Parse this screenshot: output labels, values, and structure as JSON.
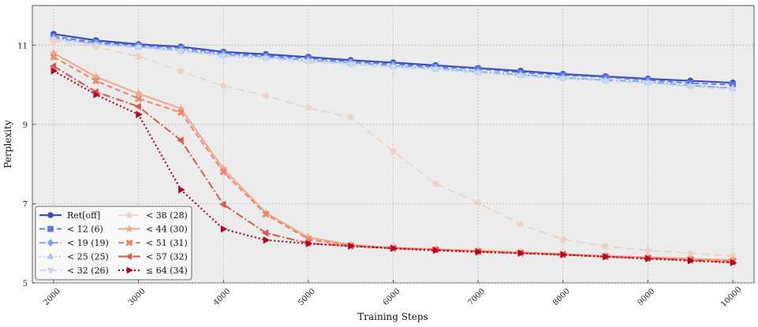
{
  "chart_data": {
    "type": "line",
    "xlabel": "Training Steps",
    "ylabel": "Perplexity",
    "xlim": [
      1750,
      10250
    ],
    "ylim": [
      5,
      12
    ],
    "x_ticks": [
      2000,
      3000,
      4000,
      5000,
      6000,
      7000,
      8000,
      9000,
      10000
    ],
    "y_ticks": [
      5,
      7,
      9,
      11
    ],
    "grid": true,
    "legend_position": "lower-left",
    "x": [
      2000,
      2500,
      3000,
      3500,
      4000,
      4500,
      5000,
      5500,
      6000,
      6500,
      7000,
      7500,
      8000,
      8500,
      9000,
      9500,
      10000
    ],
    "series": [
      {
        "name": "Ret[off]",
        "color": "#3b4cc0",
        "dash": "",
        "marker": "circle",
        "width": 2.2,
        "values": [
          11.28,
          11.12,
          11.02,
          10.96,
          10.83,
          10.77,
          10.7,
          10.62,
          10.56,
          10.49,
          10.42,
          10.35,
          10.27,
          10.21,
          10.15,
          10.1,
          10.05
        ]
      },
      {
        "name": "< 12 (6)",
        "color": "#5a78e4",
        "dash": "7,4",
        "marker": "square",
        "width": 1.8,
        "values": [
          11.22,
          11.07,
          10.99,
          10.93,
          10.8,
          10.73,
          10.67,
          10.58,
          10.52,
          10.45,
          10.4,
          10.31,
          10.24,
          10.19,
          10.12,
          10.04,
          10.0
        ]
      },
      {
        "name": "< 19 (19)",
        "color": "#7b9ff9",
        "dash": "8,3,2,3",
        "marker": "diamond",
        "width": 1.8,
        "values": [
          11.18,
          11.04,
          10.96,
          10.88,
          10.76,
          10.7,
          10.62,
          10.56,
          10.48,
          10.42,
          10.33,
          10.26,
          10.18,
          10.12,
          10.08,
          9.98,
          9.92
        ]
      },
      {
        "name": "< 25 (25)",
        "color": "#aac7fd",
        "dash": "2,3",
        "marker": "triangle-up",
        "width": 1.8,
        "values": [
          11.16,
          11.02,
          10.95,
          10.85,
          10.74,
          10.68,
          10.6,
          10.53,
          10.46,
          10.4,
          10.32,
          10.24,
          10.17,
          10.11,
          10.05,
          9.97,
          9.91
        ]
      },
      {
        "name": "< 32 (26)",
        "color": "#cdd9ec",
        "dash": "9,4",
        "marker": "triangle-down",
        "width": 1.8,
        "values": [
          11.14,
          11.0,
          10.94,
          10.84,
          10.72,
          10.66,
          10.58,
          10.51,
          10.44,
          10.38,
          10.3,
          10.22,
          10.15,
          10.09,
          10.04,
          9.95,
          9.88
        ]
      },
      {
        "name": "< 38 (28)",
        "color": "#ecd3c5",
        "dash": "10,6",
        "marker": "pentagon",
        "width": 1.8,
        "values": [
          11.1,
          10.95,
          10.72,
          10.34,
          9.97,
          9.72,
          9.42,
          9.18,
          8.32,
          7.5,
          7.02,
          6.48,
          6.1,
          5.92,
          5.82,
          5.75,
          5.68
        ]
      },
      {
        "name": "< 44 (30)",
        "color": "#f4a688",
        "dash": "",
        "marker": "star",
        "width": 2.0,
        "values": [
          10.8,
          10.2,
          9.78,
          9.4,
          7.88,
          6.77,
          6.15,
          5.96,
          5.89,
          5.85,
          5.81,
          5.77,
          5.73,
          5.68,
          5.65,
          5.61,
          5.58
        ]
      },
      {
        "name": "< 51 (31)",
        "color": "#ee8468",
        "dash": "7,4",
        "marker": "x",
        "width": 2.0,
        "values": [
          10.7,
          10.1,
          9.65,
          9.3,
          7.8,
          6.73,
          6.1,
          5.94,
          5.88,
          5.84,
          5.8,
          5.76,
          5.72,
          5.67,
          5.63,
          5.59,
          5.55
        ]
      },
      {
        "name": "< 57 (32)",
        "color": "#d95847",
        "dash": "10,3,2,3",
        "marker": "triangle-left",
        "width": 2.0,
        "values": [
          10.47,
          9.82,
          9.45,
          8.6,
          6.98,
          6.26,
          6.0,
          5.93,
          5.87,
          5.83,
          5.79,
          5.75,
          5.71,
          5.66,
          5.62,
          5.57,
          5.52
        ]
      },
      {
        "name": "≤ 64 (34)",
        "color": "#b40426",
        "dash": "2,3",
        "marker": "triangle-right",
        "width": 2.2,
        "values": [
          10.35,
          9.75,
          9.25,
          7.35,
          6.36,
          6.08,
          5.99,
          5.93,
          5.87,
          5.82,
          5.78,
          5.75,
          5.71,
          5.66,
          5.61,
          5.56,
          5.51
        ]
      }
    ]
  }
}
